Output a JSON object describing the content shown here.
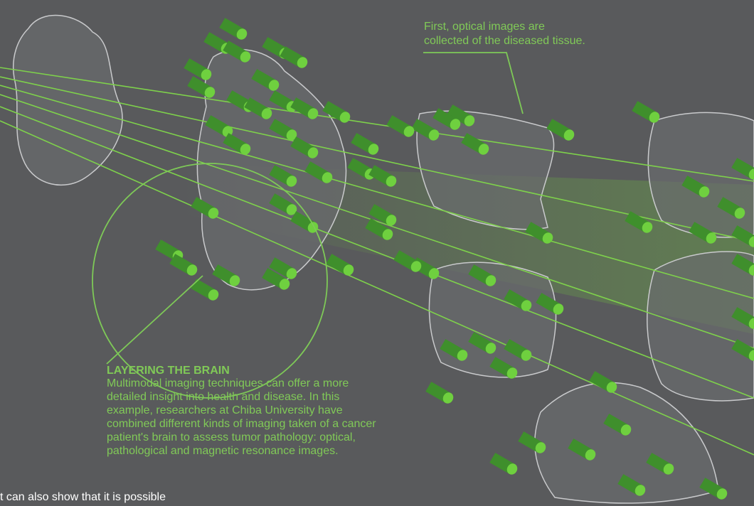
{
  "callout_top": {
    "lines": [
      "First, optical images are",
      "collected of the diseased tissue."
    ]
  },
  "callout_main": {
    "title": "LAYERING THE BRAIN",
    "lines": [
      "Multimodal imaging techniques can offer a more",
      "detailed insight into health and disease. In this",
      "example, researchers at Chiba University have",
      "combined different kinds of imaging taken of a cancer",
      "patient's brain to assess tumor pathology: optical,",
      "pathological and magnetic resonance images."
    ]
  },
  "footer_text": "t can also show that it is possible"
}
